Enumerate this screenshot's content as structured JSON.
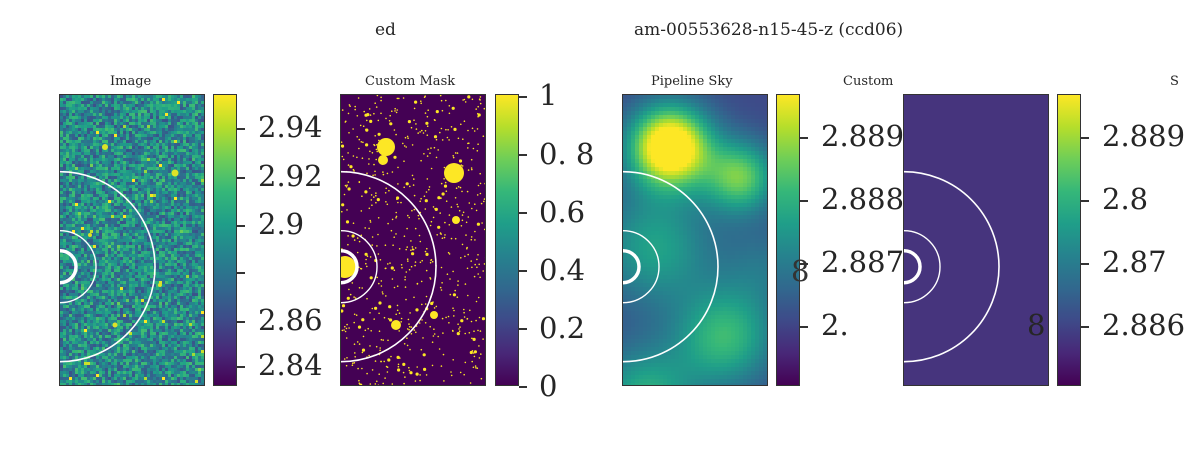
{
  "suptitle": {
    "left": "ed",
    "right": "am-00553628-n15-45-z (ccd06)"
  },
  "colormap": {
    "name": "viridis",
    "stops": [
      "#440154",
      "#482878",
      "#3e4a89",
      "#31688e",
      "#26828e",
      "#1f9e89",
      "#35b779",
      "#6ece58",
      "#b5de2b",
      "#fde725"
    ]
  },
  "overlay_color": "#ffffff",
  "panels": [
    {
      "title": "Image",
      "texture": "noise",
      "colorbar": {
        "tick_labels": [
          "2.94",
          "2.92",
          "2.9",
          "",
          "2.86",
          "2.84"
        ]
      }
    },
    {
      "title": "Custom Mask",
      "texture": "mask",
      "colorbar": {
        "tick_labels": [
          "1",
          "0.  8",
          "0.6",
          "0.4",
          "0.2",
          "0"
        ]
      }
    },
    {
      "title": "Pipeline Sky",
      "texture": "smooth",
      "colorbar": {
        "tick_labels": [
          "2.889",
          "2.888",
          "2.887",
          "2."
        ]
      }
    },
    {
      "title": "Custom",
      "texture": "flat",
      "colorbar": {
        "tick_labels": [
          "2.889",
          "2.8",
          "2.87",
          "2.886"
        ]
      }
    }
  ],
  "stray_labels": [
    "S",
    "8",
    "8"
  ]
}
